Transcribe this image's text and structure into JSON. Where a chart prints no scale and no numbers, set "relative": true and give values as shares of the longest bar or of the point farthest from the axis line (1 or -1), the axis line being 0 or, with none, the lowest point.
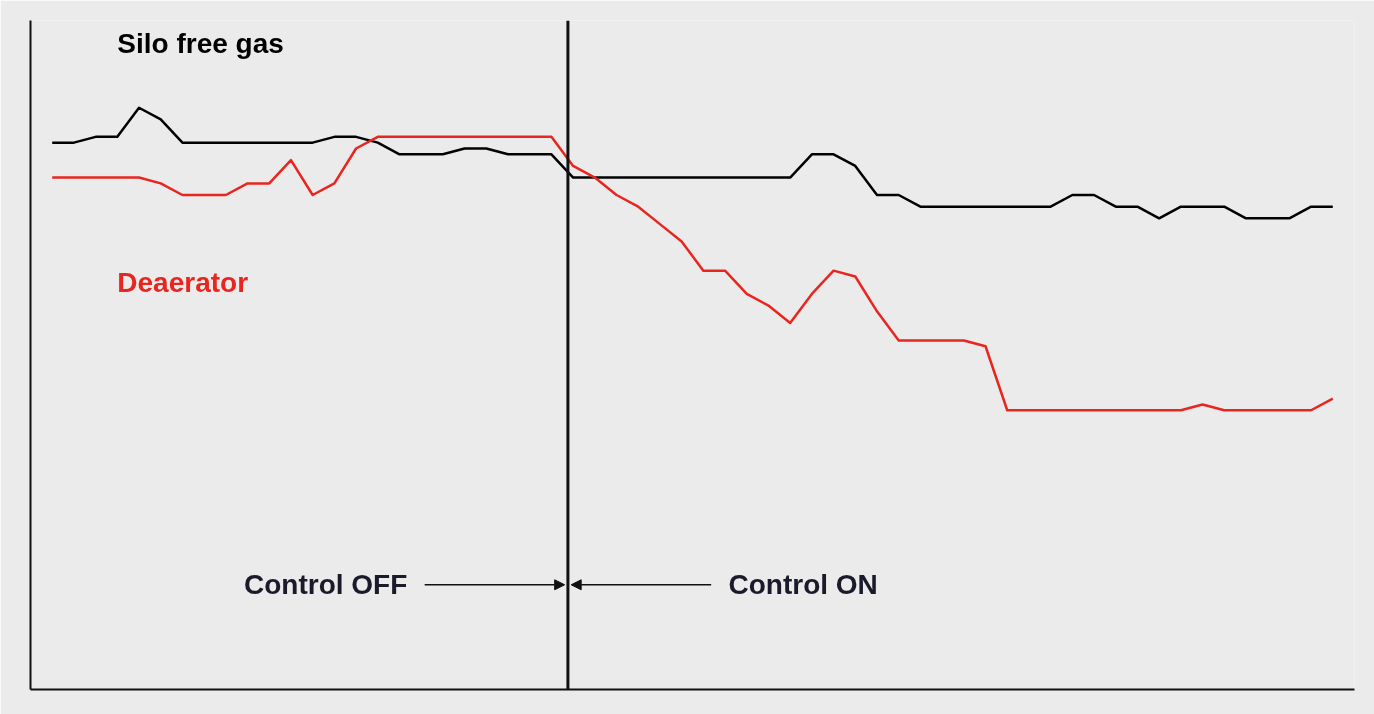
{
  "chart_data": {
    "type": "line",
    "relative": true,
    "categories": [
      null,
      null,
      null,
      null,
      null,
      null,
      null,
      null,
      null,
      null,
      null,
      null,
      null,
      null,
      null,
      null,
      null,
      null,
      null,
      null,
      null,
      null,
      null,
      null,
      null,
      null,
      null,
      null,
      null,
      null,
      null,
      null,
      null,
      null,
      null,
      null,
      null,
      null,
      null,
      null,
      null,
      null,
      null,
      null,
      null,
      null,
      null,
      null,
      null,
      null,
      null,
      null,
      null,
      null,
      null,
      null,
      null,
      null,
      null,
      null
    ],
    "series": [
      {
        "name": "Silo free gas",
        "color": "#000000",
        "values": [
          0.94,
          0.94,
          0.95,
          0.95,
          1.0,
          0.98,
          0.94,
          0.94,
          0.94,
          0.94,
          0.94,
          0.94,
          0.94,
          0.95,
          0.95,
          0.94,
          0.92,
          0.92,
          0.92,
          0.93,
          0.93,
          0.92,
          0.92,
          0.92,
          0.88,
          0.88,
          0.88,
          0.88,
          0.88,
          0.88,
          0.88,
          0.88,
          0.88,
          0.88,
          0.88,
          0.92,
          0.92,
          0.9,
          0.85,
          0.85,
          0.83,
          0.83,
          0.83,
          0.83,
          0.83,
          0.83,
          0.83,
          0.85,
          0.85,
          0.83,
          0.83,
          0.81,
          0.83,
          0.83,
          0.83,
          0.81,
          0.81,
          0.81,
          0.83,
          0.83
        ]
      },
      {
        "name": "Deaerator",
        "color": "#e8261f",
        "values": [
          0.88,
          0.88,
          0.88,
          0.88,
          0.88,
          0.87,
          0.85,
          0.85,
          0.85,
          0.87,
          0.87,
          0.91,
          0.85,
          0.87,
          0.93,
          0.95,
          0.95,
          0.95,
          0.95,
          0.95,
          0.95,
          0.95,
          0.95,
          0.95,
          0.9,
          0.88,
          0.85,
          0.83,
          0.8,
          0.77,
          0.72,
          0.72,
          0.68,
          0.66,
          0.63,
          0.68,
          0.72,
          0.71,
          0.65,
          0.6,
          0.6,
          0.6,
          0.6,
          0.59,
          0.48,
          0.48,
          0.48,
          0.48,
          0.48,
          0.48,
          0.48,
          0.48,
          0.48,
          0.49,
          0.48,
          0.48,
          0.48,
          0.48,
          0.48,
          0.5
        ]
      }
    ],
    "annotations": [
      "Control OFF",
      "Control ON"
    ]
  }
}
